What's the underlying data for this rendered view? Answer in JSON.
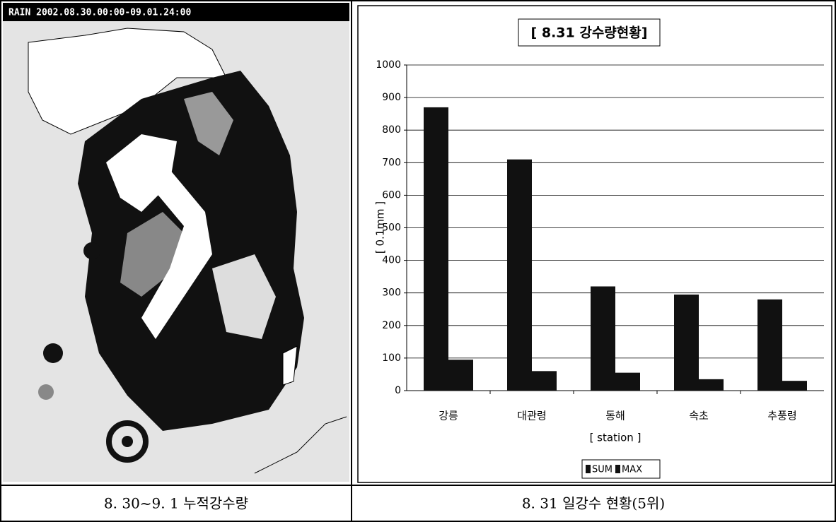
{
  "map": {
    "header": "RAIN  2002.08.30.00:00-09.01.24:00"
  },
  "captions": [
    "8. 30~9. 1 누적강수량",
    "8. 31 일강수 현황(5위)"
  ],
  "chart_data": {
    "type": "bar",
    "title": "[ 8.31 강수량현황]",
    "y_label": "[ 0.1mm ]",
    "x_label": "[ station ]",
    "categories": [
      "강릉",
      "대관령",
      "동해",
      "속초",
      "추풍령"
    ],
    "series": [
      {
        "name": "SUM",
        "color": "#111111",
        "values": [
          870,
          710,
          320,
          295,
          280
        ]
      },
      {
        "name": "MAX",
        "color": "#111111",
        "values": [
          95,
          60,
          55,
          35,
          30
        ]
      }
    ],
    "ylim": [
      0,
      1000
    ],
    "yticks": [
      0,
      100,
      200,
      300,
      400,
      500,
      600,
      700,
      800,
      900,
      1000
    ],
    "grid": true,
    "legend": "bottom"
  }
}
